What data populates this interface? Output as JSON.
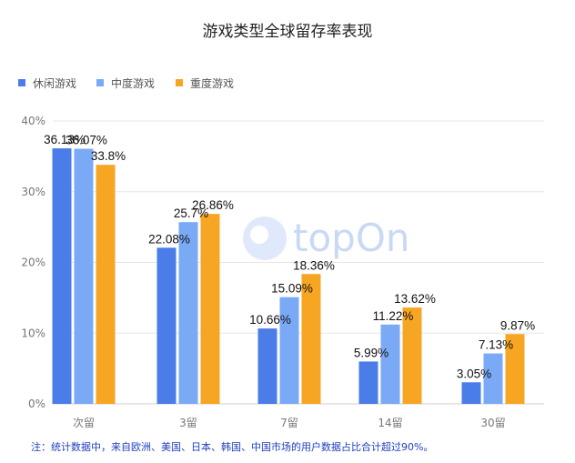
{
  "chart_data": {
    "type": "bar",
    "title": "游戏类型全球留存率表现",
    "categories": [
      "次留",
      "3留",
      "7留",
      "14留",
      "30留"
    ],
    "series": [
      {
        "name": "休闲游戏",
        "color": "#4a7de8",
        "values": [
          36.13,
          22.08,
          10.66,
          5.99,
          3.05
        ]
      },
      {
        "name": "中度游戏",
        "color": "#7aaaf6",
        "values": [
          36.07,
          25.7,
          15.09,
          11.22,
          7.13
        ]
      },
      {
        "name": "重度游戏",
        "color": "#f6a623",
        "values": [
          33.8,
          26.86,
          18.36,
          13.62,
          9.87
        ]
      }
    ],
    "data_labels": [
      [
        "36.13%",
        "22.08%",
        "10.66%",
        "5.99%",
        "3.05%"
      ],
      [
        "36.07%",
        "25.7%",
        "15.09%",
        "11.22%",
        "7.13%"
      ],
      [
        "33.8%",
        "26.86%",
        "18.36%",
        "13.62%",
        "9.87%"
      ]
    ],
    "yticks": [
      "0%",
      "10%",
      "20%",
      "30%",
      "40%"
    ],
    "ylim": [
      0,
      40
    ],
    "grid": true,
    "legend": "top-left",
    "xlabel": "",
    "ylabel": ""
  },
  "watermark": "topOn",
  "footnote": "注：统计数据中，来自欧洲、美国、日本、韩国、中国市场的用户数据占比合计超过90%。"
}
